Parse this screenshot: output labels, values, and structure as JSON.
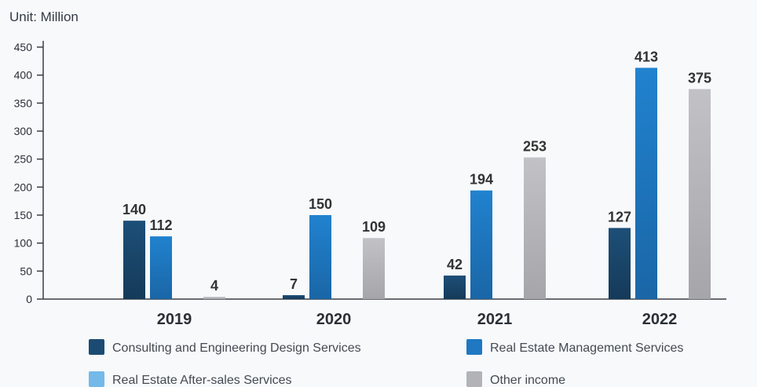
{
  "chart_data": {
    "type": "bar",
    "unit_label": "Unit: Million",
    "categories": [
      "2019",
      "2020",
      "2021",
      "2022"
    ],
    "yticks": [
      0,
      50,
      100,
      150,
      200,
      250,
      300,
      350,
      400,
      450
    ],
    "ylim": [
      0,
      450
    ],
    "grid": false,
    "legend_position": "bottom",
    "series": [
      {
        "name": "Consulting and Engineering Design Services",
        "color": "#1b4b72",
        "values": [
          140,
          7,
          42,
          127
        ]
      },
      {
        "name": "Real Estate Management Services",
        "color": "#1f78c1",
        "values": [
          112,
          150,
          194,
          413
        ]
      },
      {
        "name": "Real Estate After-sales Services",
        "color": "#74b9ea",
        "values": [
          null,
          null,
          null,
          null
        ]
      },
      {
        "name": "Other income",
        "color": "#b2b2b7",
        "values": [
          4,
          109,
          253,
          375
        ]
      }
    ]
  }
}
